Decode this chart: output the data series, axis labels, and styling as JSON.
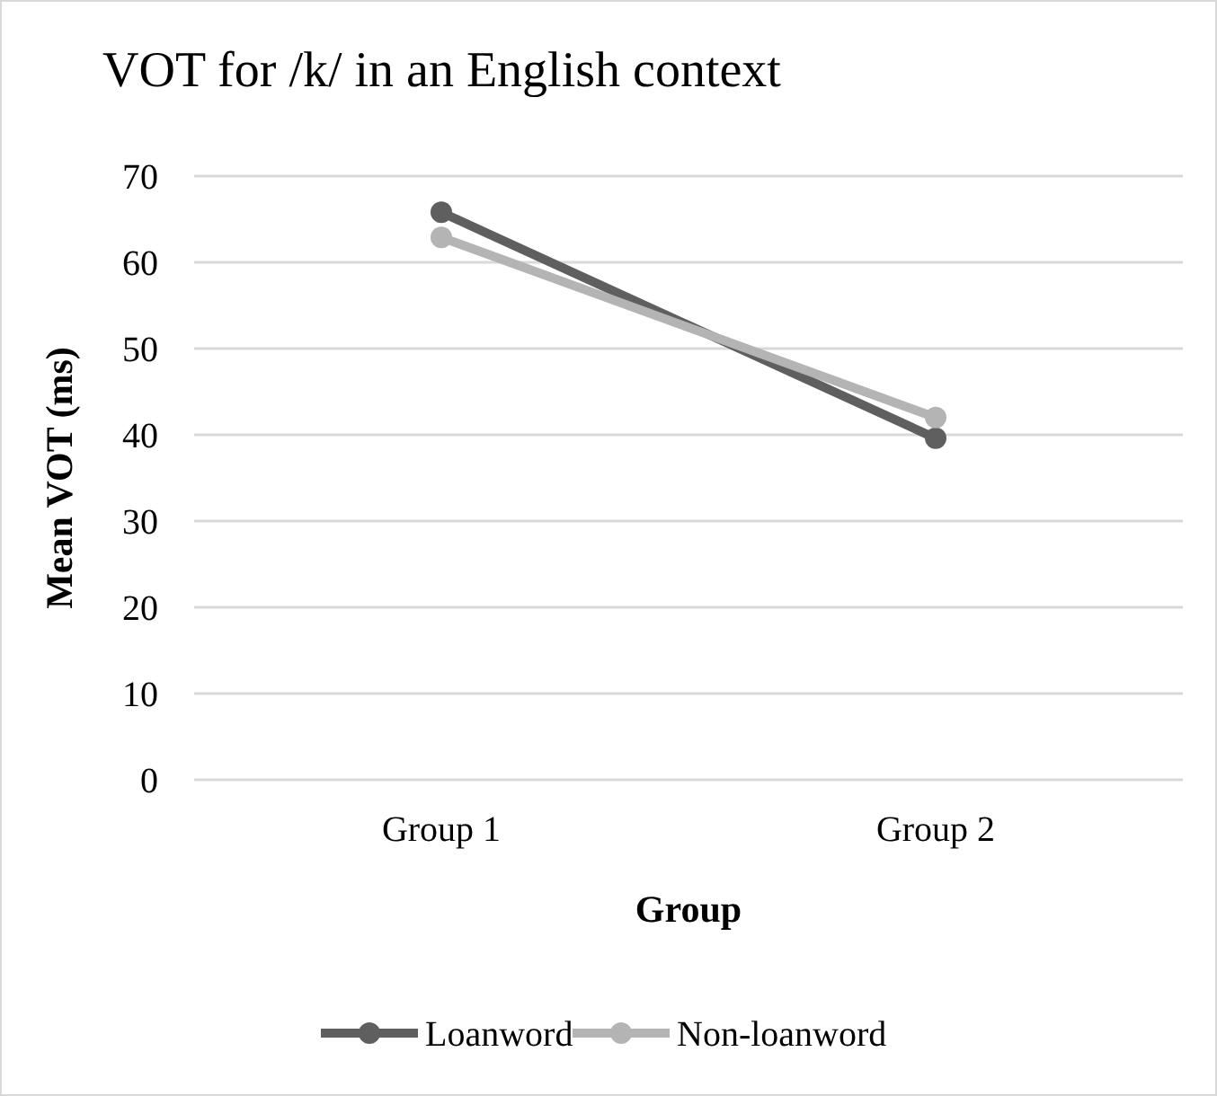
{
  "chart_data": {
    "type": "line",
    "title": "VOT for /k/ in an English context",
    "xlabel": "Group",
    "ylabel": "Mean VOT (ms)",
    "categories": [
      "Group 1",
      "Group 2"
    ],
    "series": [
      {
        "name": "Loanword",
        "color": "#5f5f5f",
        "values": [
          65.8,
          39.6
        ]
      },
      {
        "name": "Non-loanword",
        "color": "#b4b4b4",
        "values": [
          62.9,
          42.0
        ]
      }
    ],
    "ylim": [
      0,
      70
    ],
    "yticks": [
      0,
      10,
      20,
      30,
      40,
      50,
      60,
      70
    ],
    "grid": "y",
    "legend": "bottom",
    "marker": "circle",
    "line_style": "solid"
  }
}
